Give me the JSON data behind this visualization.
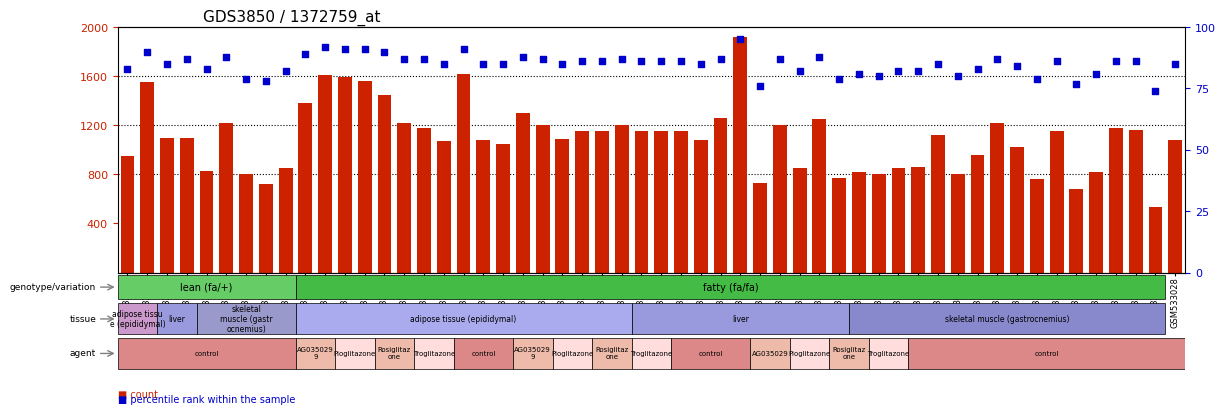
{
  "title": "GDS3850 / 1372759_at",
  "samples": [
    "GSM532993",
    "GSM532994",
    "GSM532995",
    "GSM533011",
    "GSM533012",
    "GSM533013",
    "GSM533029",
    "GSM533030",
    "GSM533031",
    "GSM532987",
    "GSM532988",
    "GSM532989",
    "GSM532996",
    "GSM532997",
    "GSM532998",
    "GSM532999",
    "GSM533000",
    "GSM533001",
    "GSM533002",
    "GSM533003",
    "GSM533004",
    "GSM532990",
    "GSM532991",
    "GSM532992",
    "GSM533005",
    "GSM533006",
    "GSM533007",
    "GSM533014",
    "GSM533015",
    "GSM533016",
    "GSM533017",
    "GSM533018",
    "GSM533019",
    "GSM533020",
    "GSM533021",
    "GSM533022",
    "GSM533008",
    "GSM533009",
    "GSM533010",
    "GSM533023",
    "GSM533024",
    "GSM533025",
    "GSM533031b",
    "GSM533033",
    "GSM533034",
    "GSM533035",
    "GSM533036",
    "GSM533037",
    "GSM533038",
    "GSM533039",
    "GSM533040",
    "GSM533026",
    "GSM533027",
    "GSM533028"
  ],
  "counts": [
    950,
    1550,
    1100,
    1100,
    830,
    1220,
    800,
    720,
    850,
    1380,
    1610,
    1590,
    1560,
    1450,
    1220,
    1180,
    1070,
    1620,
    1080,
    1050,
    1300,
    1200,
    1090,
    1150,
    1150,
    1200,
    1150,
    1150,
    1150,
    1080,
    1260,
    1920,
    730,
    1200,
    850,
    1250,
    770,
    820,
    800,
    850,
    860,
    1120,
    800,
    960,
    1220,
    1020,
    760,
    1150,
    680,
    820,
    1180,
    1160,
    530,
    1080
  ],
  "percentiles": [
    83,
    90,
    85,
    87,
    83,
    88,
    79,
    78,
    82,
    89,
    92,
    91,
    91,
    90,
    87,
    87,
    85,
    91,
    85,
    85,
    88,
    87,
    85,
    86,
    86,
    87,
    86,
    86,
    86,
    85,
    87,
    95,
    76,
    87,
    82,
    88,
    79,
    81,
    80,
    82,
    82,
    85,
    80,
    83,
    87,
    84,
    79,
    86,
    77,
    81,
    86,
    86,
    74,
    85
  ],
  "bar_color": "#cc2200",
  "dot_color": "#0000cc",
  "bg_color": "#ffffff",
  "plot_bg": "#ffffff",
  "grid_color": "#000000",
  "ylim_left": [
    0,
    2000
  ],
  "ylim_right": [
    0,
    100
  ],
  "yticks_left": [
    400,
    800,
    1200,
    1600,
    2000
  ],
  "yticks_right": [
    0,
    25,
    50,
    75,
    100
  ],
  "genotype_groups": [
    {
      "label": "lean (fa/+)",
      "start": 0,
      "end": 9,
      "color": "#66cc66"
    },
    {
      "label": "fatty (fa/fa)",
      "start": 9,
      "end": 53,
      "color": "#44bb44"
    }
  ],
  "tissue_groups": [
    {
      "label": "adipose tissu\ne (epididymal)",
      "start": 0,
      "end": 2,
      "color": "#cc99cc"
    },
    {
      "label": "liver",
      "start": 2,
      "end": 4,
      "color": "#9999dd"
    },
    {
      "label": "skeletal\nmuscle (gastr\nocnemius)",
      "start": 4,
      "end": 9,
      "color": "#9999cc"
    },
    {
      "label": "adipose tissue (epididymal)",
      "start": 9,
      "end": 26,
      "color": "#aaaaee"
    },
    {
      "label": "liver",
      "start": 26,
      "end": 37,
      "color": "#9999dd"
    },
    {
      "label": "skeletal muscle (gastrocnemius)",
      "start": 37,
      "end": 53,
      "color": "#8888cc"
    }
  ],
  "agent_groups": [
    {
      "label": "control",
      "start": 0,
      "end": 4,
      "color": "#dd8888"
    },
    {
      "label": "AG035029",
      "start": 4,
      "end": 5,
      "color": "#eebbbb"
    },
    {
      "label": "Pioglitazone",
      "start": 5,
      "end": 6,
      "color": "#ffdddd"
    },
    {
      "label": "Rosiglitaz\none",
      "start": 6,
      "end": 7,
      "color": "#eebbbb"
    },
    {
      "label": "Troglitazone",
      "start": 7,
      "end": 8,
      "color": "#ffdddd"
    },
    {
      "label": "control",
      "start": 8,
      "end": 9,
      "color": "#dd8888"
    },
    {
      "label": "AG035029",
      "start": 9,
      "end": 11,
      "color": "#eebbbb"
    },
    {
      "label": "Pioglitazone",
      "start": 11,
      "end": 13,
      "color": "#ffdddd"
    },
    {
      "label": "Rosiglitaz\none",
      "start": 13,
      "end": 15,
      "color": "#eebbbb"
    },
    {
      "label": "Troglitazone",
      "start": 15,
      "end": 17,
      "color": "#ffdddd"
    },
    {
      "label": "control",
      "start": 17,
      "end": 20,
      "color": "#dd8888"
    },
    {
      "label": "AG035029",
      "start": 20,
      "end": 22,
      "color": "#eebbbb"
    },
    {
      "label": "Pioglitazone",
      "start": 22,
      "end": 24,
      "color": "#ffdddd"
    },
    {
      "label": "Rosiglitaz\none",
      "start": 24,
      "end": 26,
      "color": "#eebbbb"
    },
    {
      "label": "Troglitazone",
      "start": 26,
      "end": 28,
      "color": "#ffdddd"
    },
    {
      "label": "control",
      "start": 28,
      "end": 31,
      "color": "#dd8888"
    },
    {
      "label": "AG035029",
      "start": 31,
      "end": 33,
      "color": "#eebbbb"
    },
    {
      "label": "Pioglitazone",
      "start": 33,
      "end": 35,
      "color": "#ffdddd"
    },
    {
      "label": "Rosiglitaz\none",
      "start": 35,
      "end": 37,
      "color": "#eebbbb"
    },
    {
      "label": "Troglitazone",
      "start": 37,
      "end": 39,
      "color": "#ffdddd"
    },
    {
      "label": "control",
      "start": 39,
      "end": 53,
      "color": "#dd8888"
    }
  ],
  "xlabel_fontsize": 6,
  "title_fontsize": 11,
  "tick_fontsize": 8
}
